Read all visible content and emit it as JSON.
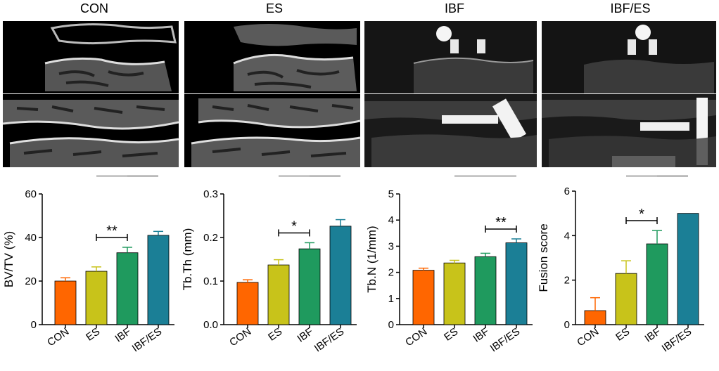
{
  "columns": [
    {
      "title": "CON"
    },
    {
      "title": "ES"
    },
    {
      "title": "IBF"
    },
    {
      "title": "IBF/ES"
    }
  ],
  "colors": {
    "CON": "#ff6600",
    "ES": "#c8c31a",
    "IBF": "#1f9a5e",
    "IBF/ES": "#1b7f96",
    "error_CON": "#ff6600",
    "error_ES": "#c8c31a",
    "error_IBF": "#1f9a5e",
    "error_IBF/ES": "#1b7f96"
  },
  "chart_data": [
    {
      "type": "bar",
      "ylabel": "BV/TV (%)",
      "categories": [
        "CON",
        "ES",
        "IBF",
        "IBF/ES"
      ],
      "values": [
        20,
        24.5,
        33,
        41
      ],
      "errors": [
        1.5,
        2,
        2.5,
        1.8
      ],
      "ylim": [
        0,
        60
      ],
      "yticks": [
        "0",
        "20",
        "40",
        "60"
      ],
      "significance": [
        {
          "from": "ES",
          "to": "IBF",
          "label": "**"
        },
        {
          "from": "IBF",
          "to": "IBF/ES",
          "label": "**"
        },
        {
          "from": "ES",
          "to": "IBF/ES",
          "label": "***"
        }
      ]
    },
    {
      "type": "bar",
      "ylabel": "Tb.Th (mm)",
      "categories": [
        "CON",
        "ES",
        "IBF",
        "IBF/ES"
      ],
      "values": [
        0.097,
        0.137,
        0.174,
        0.226
      ],
      "errors": [
        0.006,
        0.012,
        0.014,
        0.015
      ],
      "ylim": [
        0,
        0.3
      ],
      "yticks": [
        "0.0",
        "0.1",
        "0.2",
        "0.3"
      ],
      "significance": [
        {
          "from": "ES",
          "to": "IBF",
          "label": "*"
        },
        {
          "from": "IBF",
          "to": "IBF/ES",
          "label": "*"
        },
        {
          "from": "ES",
          "to": "IBF/ES",
          "label": "**"
        }
      ]
    },
    {
      "type": "bar",
      "ylabel": "Tb.N (1/mm)",
      "categories": [
        "CON",
        "ES",
        "IBF",
        "IBF/ES"
      ],
      "values": [
        2.08,
        2.36,
        2.6,
        3.13
      ],
      "errors": [
        0.08,
        0.1,
        0.13,
        0.15
      ],
      "ylim": [
        0,
        5
      ],
      "yticks": [
        "0",
        "1",
        "2",
        "3",
        "4",
        "5"
      ],
      "significance": [
        {
          "from": "IBF",
          "to": "IBF/ES",
          "label": "**"
        },
        {
          "from": "ES",
          "to": "IBF/ES",
          "label": "**"
        }
      ]
    },
    {
      "type": "bar",
      "ylabel": "Fusion score",
      "categories": [
        "CON",
        "ES",
        "IBF",
        "IBF/ES"
      ],
      "values": [
        0.63,
        2.3,
        3.63,
        5.0
      ],
      "errors": [
        0.58,
        0.57,
        0.6,
        0
      ],
      "ylim": [
        0,
        6
      ],
      "yticks": [
        "0",
        "2",
        "4",
        "6"
      ],
      "significance": [
        {
          "from": "ES",
          "to": "IBF",
          "label": "*"
        },
        {
          "from": "IBF",
          "to": "IBF/ES",
          "label": "*"
        },
        {
          "from": "ES",
          "to": "IBF/ES",
          "label": "**"
        }
      ]
    }
  ]
}
